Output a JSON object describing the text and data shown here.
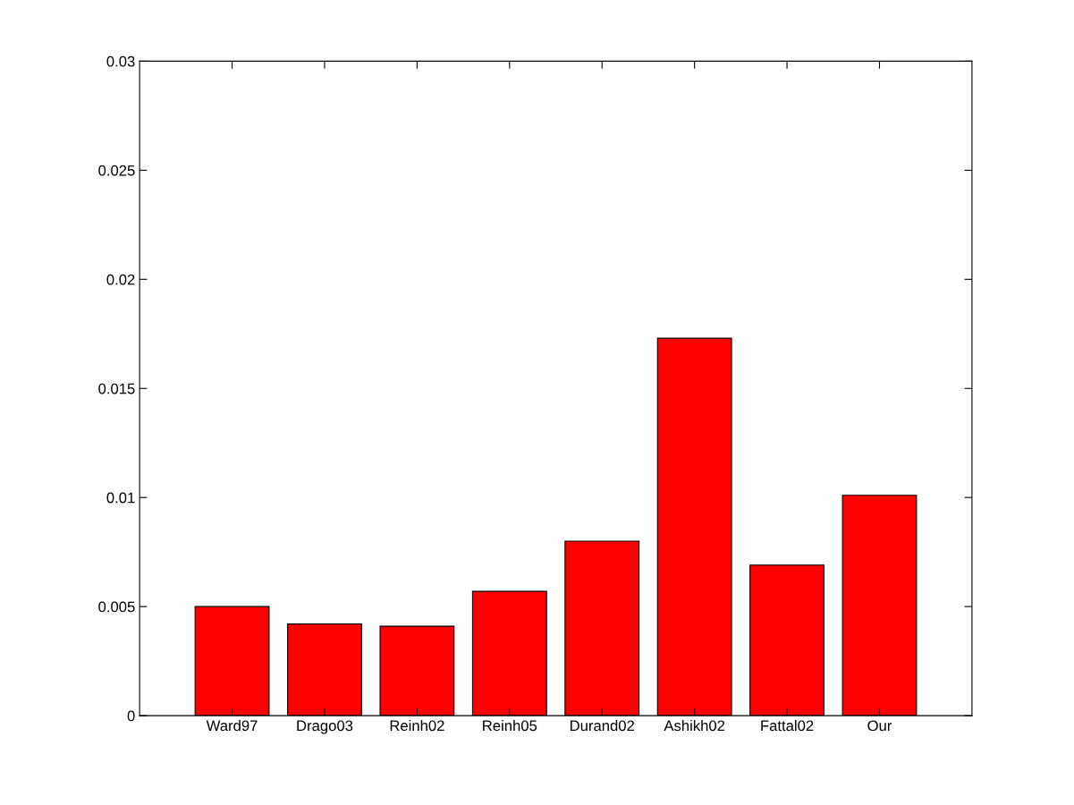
{
  "chart_data": {
    "type": "bar",
    "categories": [
      "Ward97",
      "Drago03",
      "Reinh02",
      "Reinh05",
      "Durand02",
      "Ashikh02",
      "Fattal02",
      "Our"
    ],
    "values": [
      0.005,
      0.0042,
      0.0041,
      0.0057,
      0.008,
      0.0173,
      0.0069,
      0.0101
    ],
    "color": "#ff0000",
    "ylim": [
      0,
      0.03
    ],
    "yticks": [
      0,
      0.005,
      0.01,
      0.015,
      0.02,
      0.025,
      0.03
    ],
    "grid": false
  }
}
